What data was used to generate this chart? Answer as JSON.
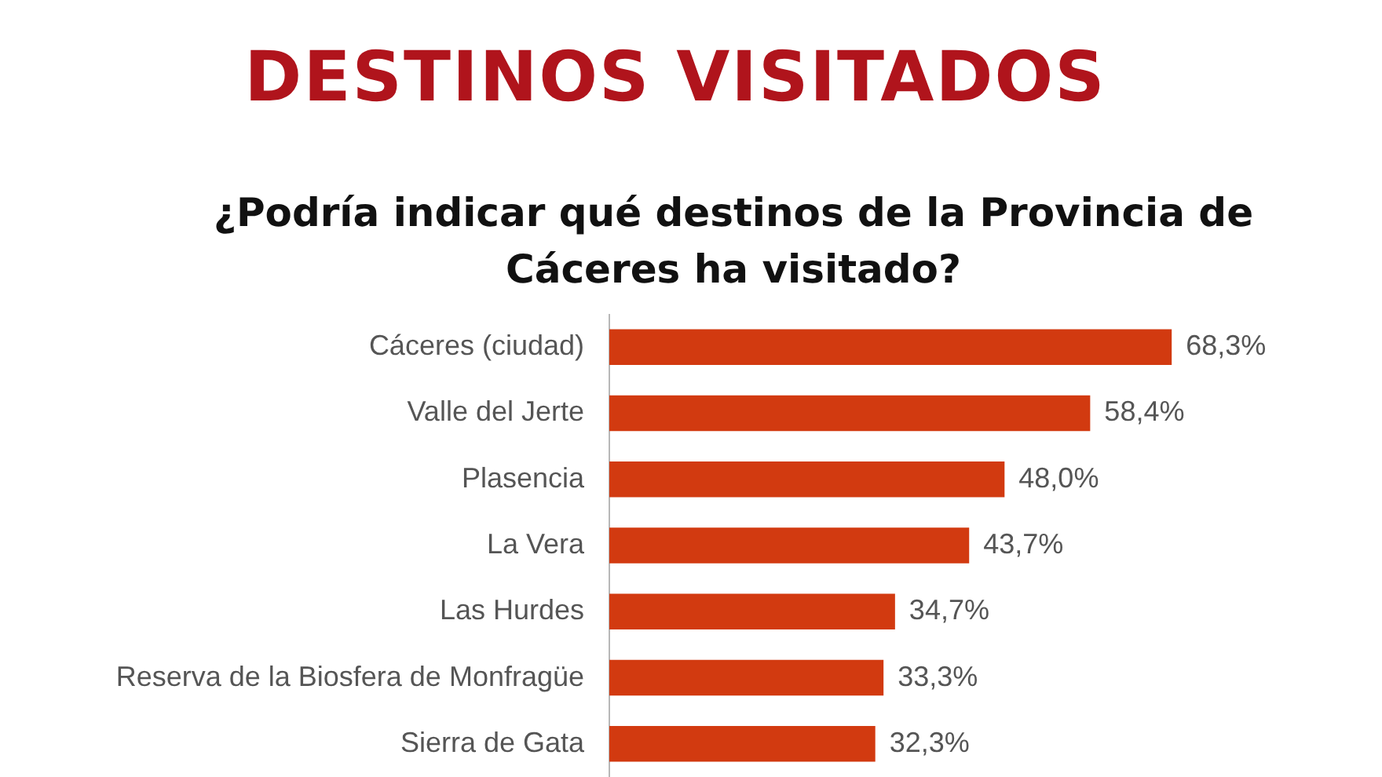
{
  "chart_data": {
    "type": "bar",
    "orientation": "horizontal",
    "title": "DESTINOS VISITADOS",
    "subtitle": "¿Podría indicar qué destinos de la Provincia de Cáceres ha visitado?",
    "categories": [
      "Cáceres (ciudad)",
      "Valle del Jerte",
      "Plasencia",
      "La Vera",
      "Las Hurdes",
      "Reserva de la Biosfera de Monfragüe",
      "Sierra de Gata"
    ],
    "values": [
      68.3,
      58.4,
      48.0,
      43.7,
      34.7,
      33.3,
      32.3
    ],
    "value_labels": [
      "68,3%",
      "58,4%",
      "48,0%",
      "43,7%",
      "34,7%",
      "33,3%",
      "32,3%"
    ],
    "color": "#d23a10",
    "tick_labels": "y"
  }
}
